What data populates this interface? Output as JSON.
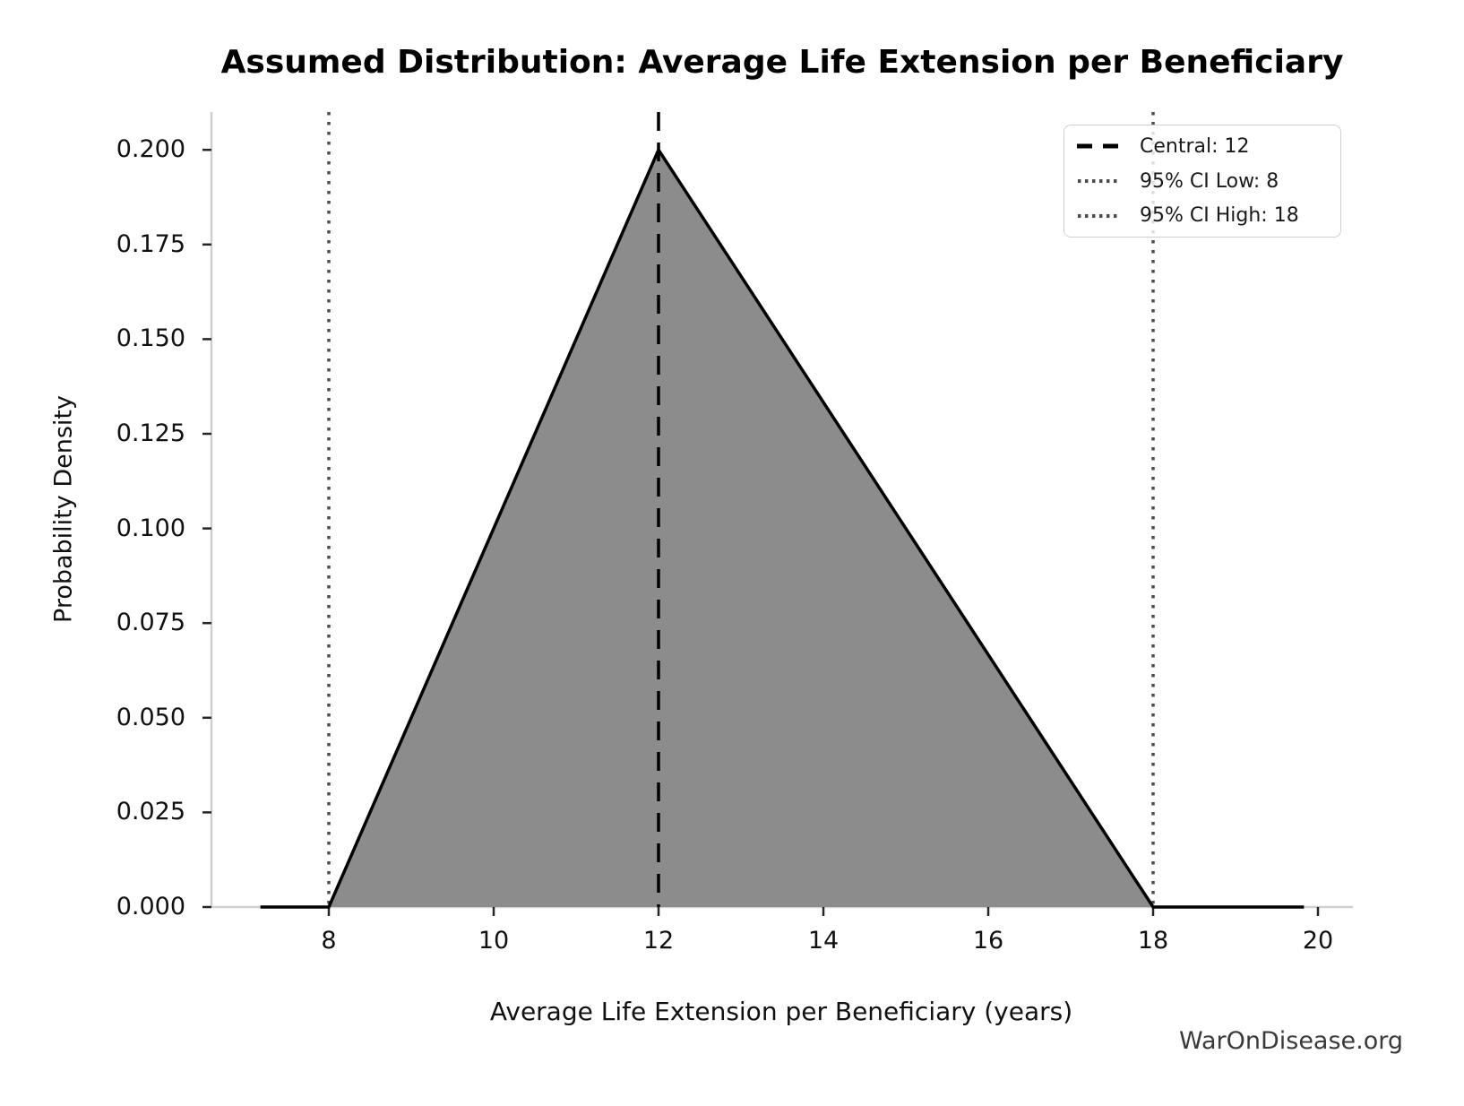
{
  "title": "Assumed Distribution: Average Life Extension per Beneficiary",
  "watermark": "WarOnDisease.org",
  "legend": {
    "position": "upper right",
    "items": [
      {
        "label": "Central: 12",
        "style": "dashed",
        "color": "#000000"
      },
      {
        "label": "95% CI Low: 8",
        "style": "dotted",
        "color": "#4c4c4c"
      },
      {
        "label": "95% CI High: 18",
        "style": "dotted",
        "color": "#4c4c4c"
      }
    ]
  },
  "chart_data": {
    "type": "area",
    "subtype": "triangular-pdf",
    "title": "Assumed Distribution: Average Life Extension per Beneficiary",
    "xlabel": "Average Life Extension per Beneficiary (years)",
    "ylabel": "Probability Density",
    "low": 8,
    "mode": 12,
    "high": 18,
    "peak_density": 0.2,
    "series": [
      {
        "name": "Triangular PDF",
        "x": [
          7.17,
          8,
          12,
          18,
          19.83
        ],
        "y": [
          0,
          0,
          0.2,
          0,
          0
        ]
      }
    ],
    "annotations": [
      {
        "name": "central-line",
        "x": 12,
        "style": "dashed",
        "color": "#000000",
        "label": "Central: 12"
      },
      {
        "name": "ci-low-line",
        "x": 8,
        "style": "dotted",
        "color": "#4c4c4c",
        "label": "95% CI Low: 8"
      },
      {
        "name": "ci-high-line",
        "x": 18,
        "style": "dotted",
        "color": "#4c4c4c",
        "label": "95% CI High: 18"
      }
    ],
    "x_ticks": [
      8,
      10,
      12,
      14,
      16,
      18,
      20
    ],
    "y_ticks": [
      0.0,
      0.025,
      0.05,
      0.075,
      0.1,
      0.125,
      0.15,
      0.175,
      0.2
    ],
    "y_tick_labels": [
      "0.000",
      "0.025",
      "0.050",
      "0.075",
      "0.100",
      "0.125",
      "0.150",
      "0.175",
      "0.200"
    ],
    "xlim": [
      6.58,
      20.42
    ],
    "ylim": [
      0,
      0.21
    ],
    "grid": false,
    "legend_position": "upper right",
    "colors": {
      "fill": "#8c8c8c",
      "edge": "#000000",
      "central_line": "#000000",
      "ci_line": "#4c4c4c",
      "spine": "#cfcfcf",
      "tick": "#262626",
      "text": "#111111",
      "watermark_text": "#3a3a3a"
    }
  }
}
